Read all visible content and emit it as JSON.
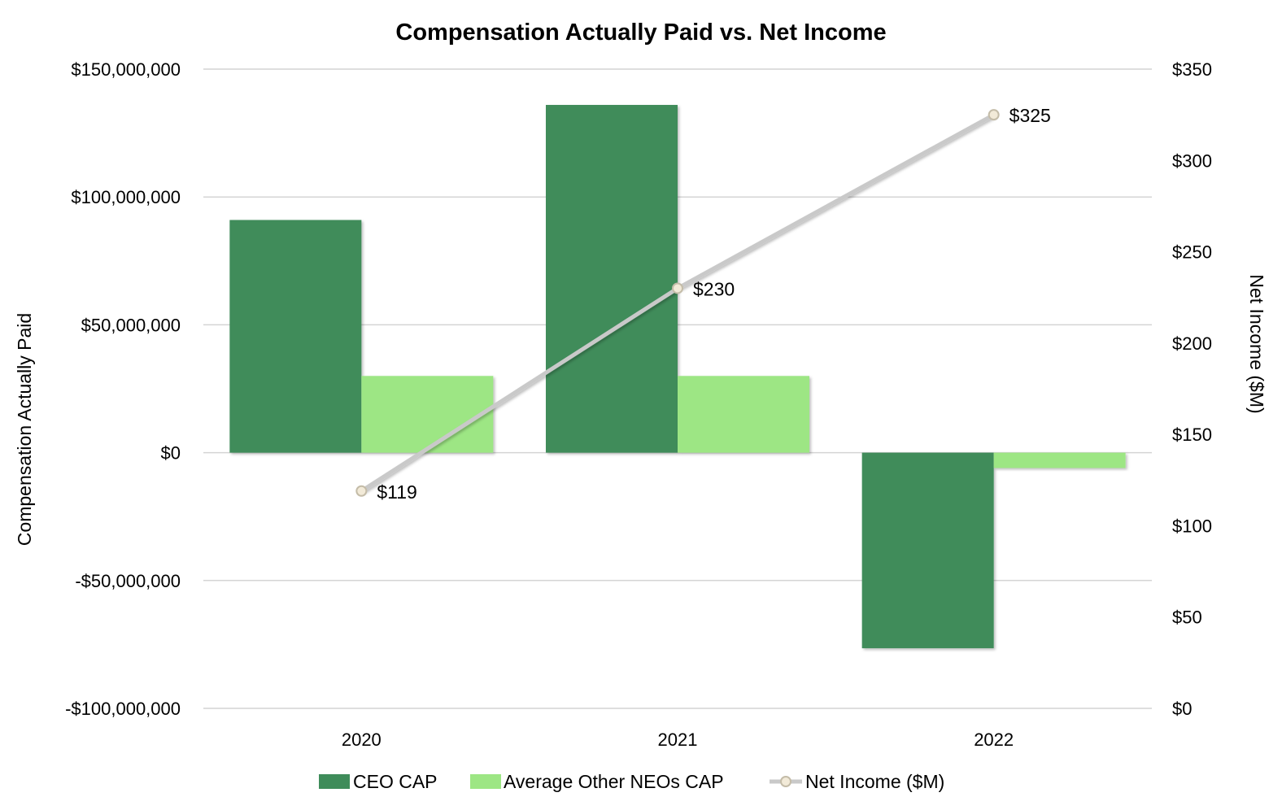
{
  "chart_data": {
    "type": "bar",
    "title": "Compensation Actually Paid vs. Net Income",
    "categories": [
      "2020",
      "2021",
      "2022"
    ],
    "ylabel": "Compensation Actually Paid",
    "y2label": "Net Income ($M)",
    "ylim": [
      -100000000,
      150000000
    ],
    "y2lim": [
      0,
      350
    ],
    "yticks": [
      {
        "value": 150000000,
        "label": "$150,000,000"
      },
      {
        "value": 100000000,
        "label": "$100,000,000"
      },
      {
        "value": 50000000,
        "label": "$50,000,000"
      },
      {
        "value": 0,
        "label": "$0"
      },
      {
        "value": -50000000,
        "label": "-$50,000,000"
      },
      {
        "value": -100000000,
        "label": "-$100,000,000"
      }
    ],
    "y2ticks": [
      {
        "value": 350,
        "label": "$350"
      },
      {
        "value": 300,
        "label": "$300"
      },
      {
        "value": 250,
        "label": "$250"
      },
      {
        "value": 200,
        "label": "$200"
      },
      {
        "value": 150,
        "label": "$150"
      },
      {
        "value": 100,
        "label": "$100"
      },
      {
        "value": 50,
        "label": "$50"
      },
      {
        "value": 0,
        "label": "$0"
      }
    ],
    "grid": true,
    "legend_position": "bottom",
    "series": [
      {
        "name": "CEO CAP",
        "type": "bar",
        "axis": "left",
        "color": "#3f8c5a",
        "values": [
          91000000,
          136000000,
          -76500000
        ]
      },
      {
        "name": "Average Other NEOs CAP",
        "type": "bar",
        "axis": "left",
        "color": "#9de684",
        "values": [
          30000000,
          30000000,
          -6000000
        ]
      },
      {
        "name": "Net Income ($M)",
        "type": "line",
        "axis": "right",
        "color": "#c9c9c9",
        "marker_color": "#f2ead8",
        "values": [
          119,
          230,
          325
        ],
        "labels": [
          "$119",
          "$230",
          "$325"
        ]
      }
    ]
  }
}
